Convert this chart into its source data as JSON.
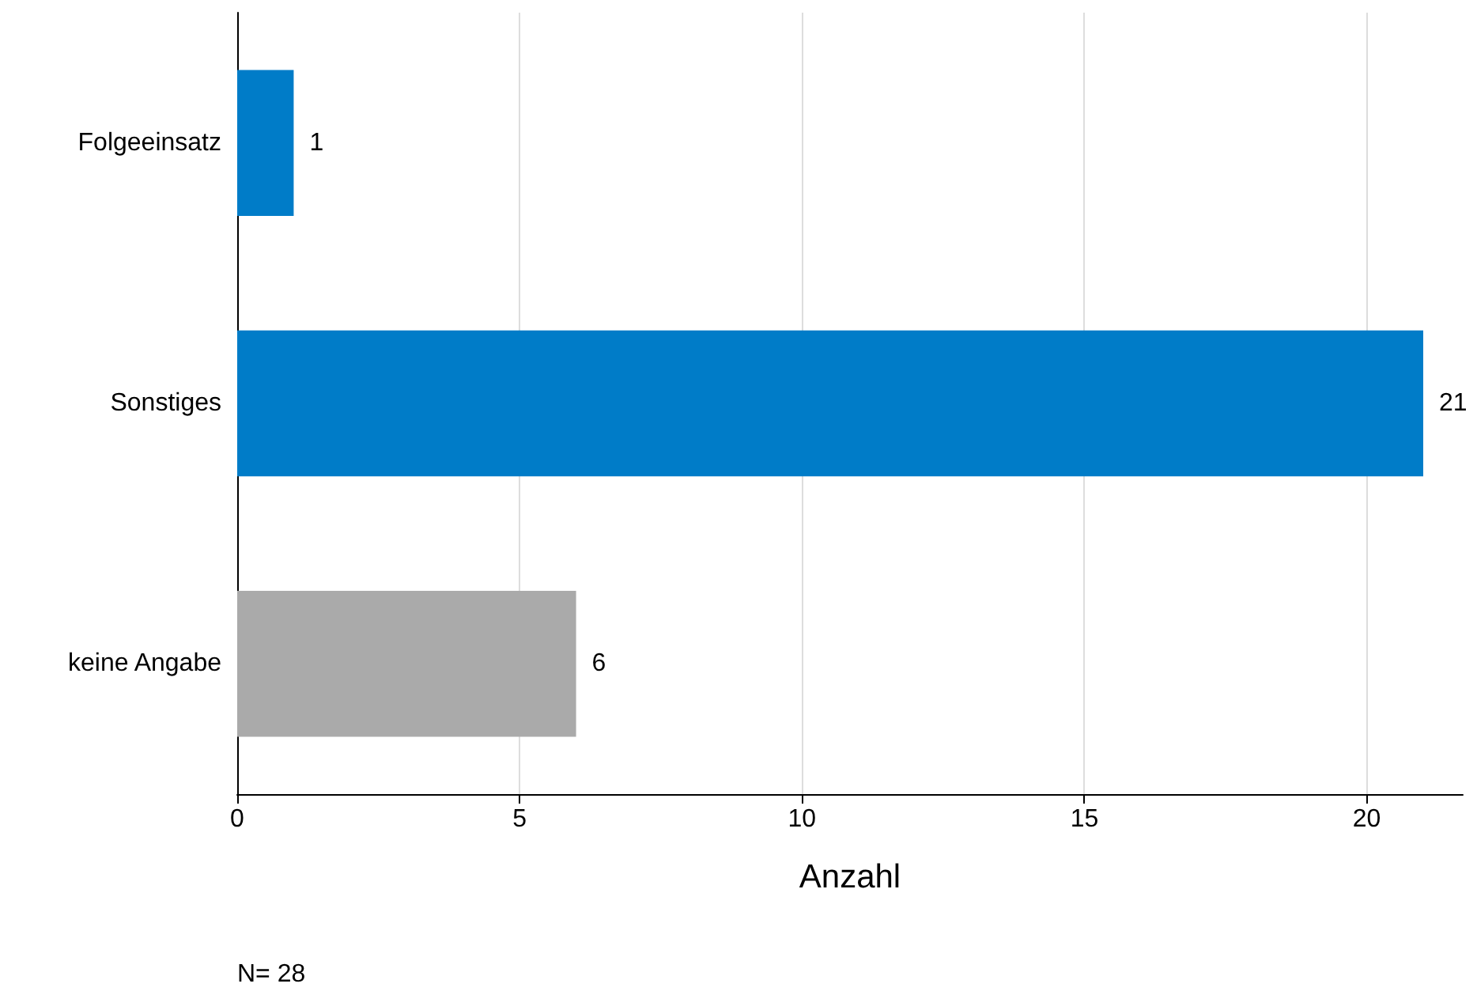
{
  "chart_data": {
    "type": "bar",
    "orientation": "horizontal",
    "categories": [
      "Folgeeinsatz",
      "Sonstiges",
      "keine Angabe"
    ],
    "values": [
      1,
      21,
      6
    ],
    "colors": [
      "#007cc8",
      "#007cc8",
      "#aaaaaa"
    ],
    "xlim": [
      0,
      21.7
    ],
    "xticks": [
      0,
      5,
      10,
      15,
      20
    ],
    "grid": "x",
    "data_labels": true,
    "xlabel": "Anzahl",
    "annotations": [
      "N= 28"
    ]
  }
}
